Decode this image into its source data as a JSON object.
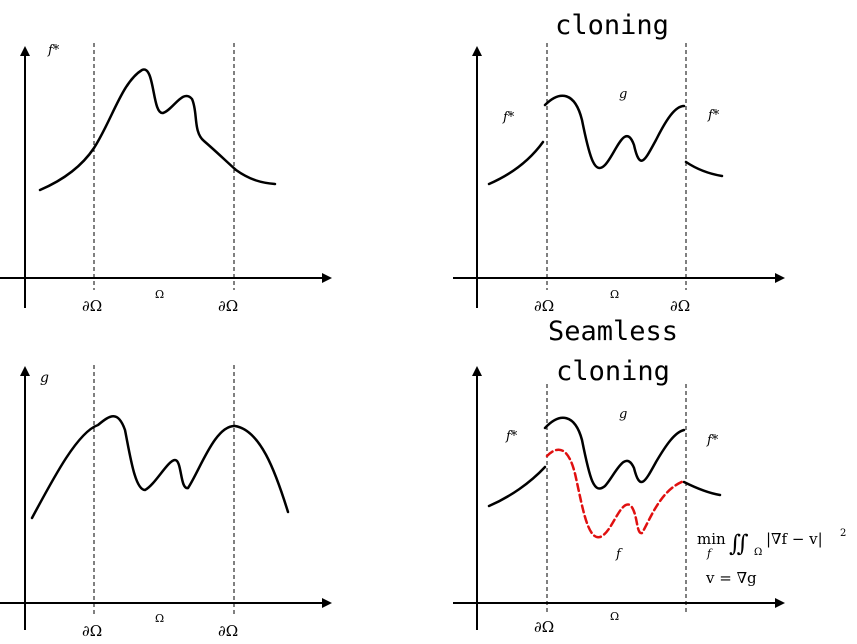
{
  "panels": {
    "top_left": {
      "func_label": "f*",
      "boundary_left": "∂Ω",
      "domain": "Ω",
      "boundary_right": "∂Ω"
    },
    "top_right": {
      "title": "cloning",
      "left_label": "f*",
      "inner_label": "g",
      "right_label": "f*",
      "boundary_left": "∂Ω",
      "domain": "Ω",
      "boundary_right": "∂Ω"
    },
    "bottom_left": {
      "func_label": "g",
      "boundary_left": "∂Ω",
      "domain": "Ω",
      "boundary_right": "∂Ω"
    },
    "bottom_right": {
      "title_line1": "Seamless",
      "title_line2": "cloning",
      "left_label": "f*",
      "inner_label": "g",
      "right_label": "f*",
      "result_label": "f",
      "boundary_left": "∂Ω",
      "domain": "Ω",
      "equation_min": "min",
      "equation_min_sub": "f",
      "equation_integral": "∬",
      "equation_integral_sub": "Ω",
      "equation_body": "|∇f − v|",
      "equation_power": "2",
      "equation_constraint": "v = ∇g"
    }
  },
  "colors": {
    "curve": "#000000",
    "result_curve": "#e01010"
  }
}
